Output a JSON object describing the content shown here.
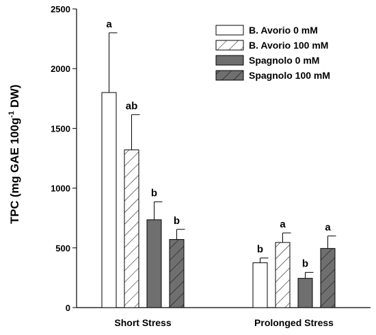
{
  "chart_data": {
    "type": "bar",
    "ylabel_main": "TPC (mg GAE 100g",
    "ylabel_sup": "-1",
    "ylabel_tail": " DW)",
    "xlabel": "",
    "ylim": [
      0,
      2500
    ],
    "yticks": [
      "0",
      "500",
      "1000",
      "1500",
      "2000",
      "2500"
    ],
    "categories": [
      "Short Stress",
      "Prolonged Stress"
    ],
    "legend_position": "top-right",
    "series": [
      {
        "name": "B. Avorio 0 mM",
        "fill": "#ffffff",
        "pattern": "none",
        "values": [
          1800,
          375
        ],
        "errors": [
          500,
          40
        ],
        "labels": [
          "a",
          "b"
        ]
      },
      {
        "name": "B. Avorio 100 mM",
        "fill": "#ffffff",
        "pattern": "hatch",
        "values": [
          1320,
          545
        ],
        "errors": [
          295,
          80
        ],
        "labels": [
          "ab",
          "a"
        ]
      },
      {
        "name": "Spagnolo 0 mM",
        "fill": "#6f6f6f",
        "pattern": "none",
        "values": [
          735,
          245
        ],
        "errors": [
          150,
          50
        ],
        "labels": [
          "b",
          "b"
        ]
      },
      {
        "name": "Spagnolo 100 mM",
        "fill": "#6f6f6f",
        "pattern": "hatch",
        "values": [
          570,
          495
        ],
        "errors": [
          85,
          105
        ],
        "labels": [
          "b",
          "a"
        ]
      }
    ]
  }
}
